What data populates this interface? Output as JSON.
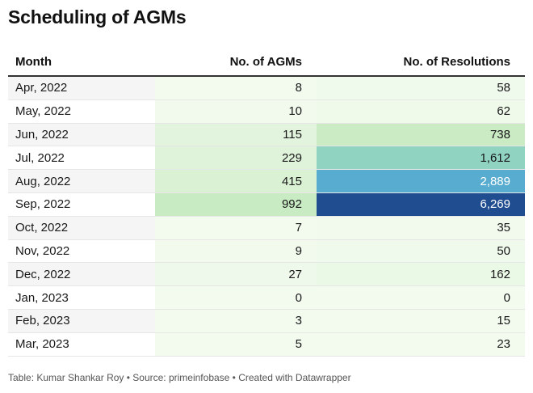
{
  "title": "Scheduling of AGMs",
  "columns": {
    "month": "Month",
    "agms": "No. of AGMs",
    "resolutions": "No. of Resolutions"
  },
  "rows": [
    {
      "month": "Apr, 2022",
      "agms": "8",
      "resolutions": "58"
    },
    {
      "month": "May, 2022",
      "agms": "10",
      "resolutions": "62"
    },
    {
      "month": "Jun, 2022",
      "agms": "115",
      "resolutions": "738"
    },
    {
      "month": "Jul, 2022",
      "agms": "229",
      "resolutions": "1,612"
    },
    {
      "month": "Aug, 2022",
      "agms": "415",
      "resolutions": "2,889"
    },
    {
      "month": "Sep, 2022",
      "agms": "992",
      "resolutions": "6,269"
    },
    {
      "month": "Oct, 2022",
      "agms": "7",
      "resolutions": "35"
    },
    {
      "month": "Nov, 2022",
      "agms": "9",
      "resolutions": "50"
    },
    {
      "month": "Dec, 2022",
      "agms": "27",
      "resolutions": "162"
    },
    {
      "month": "Jan, 2023",
      "agms": "0",
      "resolutions": "0"
    },
    {
      "month": "Feb, 2023",
      "agms": "3",
      "resolutions": "15"
    },
    {
      "month": "Mar, 2023",
      "agms": "5",
      "resolutions": "23"
    }
  ],
  "footer": "Table: Kumar Shankar Roy • Source: primeinfobase • Created with Datawrapper",
  "colors": {
    "low": "#f3fbef",
    "mid": "#c9ebc3",
    "teal": "#8fd3c1",
    "blue": "#58acd0",
    "dark": "#204d8f",
    "zebra": "#f5f5f5"
  },
  "chart_data": {
    "type": "table",
    "title": "Scheduling of AGMs",
    "columns": [
      "Month",
      "No. of AGMs",
      "No. of Resolutions"
    ],
    "categories": [
      "Apr, 2022",
      "May, 2022",
      "Jun, 2022",
      "Jul, 2022",
      "Aug, 2022",
      "Sep, 2022",
      "Oct, 2022",
      "Nov, 2022",
      "Dec, 2022",
      "Jan, 2023",
      "Feb, 2023",
      "Mar, 2023"
    ],
    "series": [
      {
        "name": "No. of AGMs",
        "values": [
          8,
          10,
          115,
          229,
          415,
          992,
          7,
          9,
          27,
          0,
          3,
          5
        ]
      },
      {
        "name": "No. of Resolutions",
        "values": [
          58,
          62,
          738,
          1612,
          2889,
          6269,
          35,
          50,
          162,
          0,
          15,
          23
        ]
      }
    ]
  }
}
